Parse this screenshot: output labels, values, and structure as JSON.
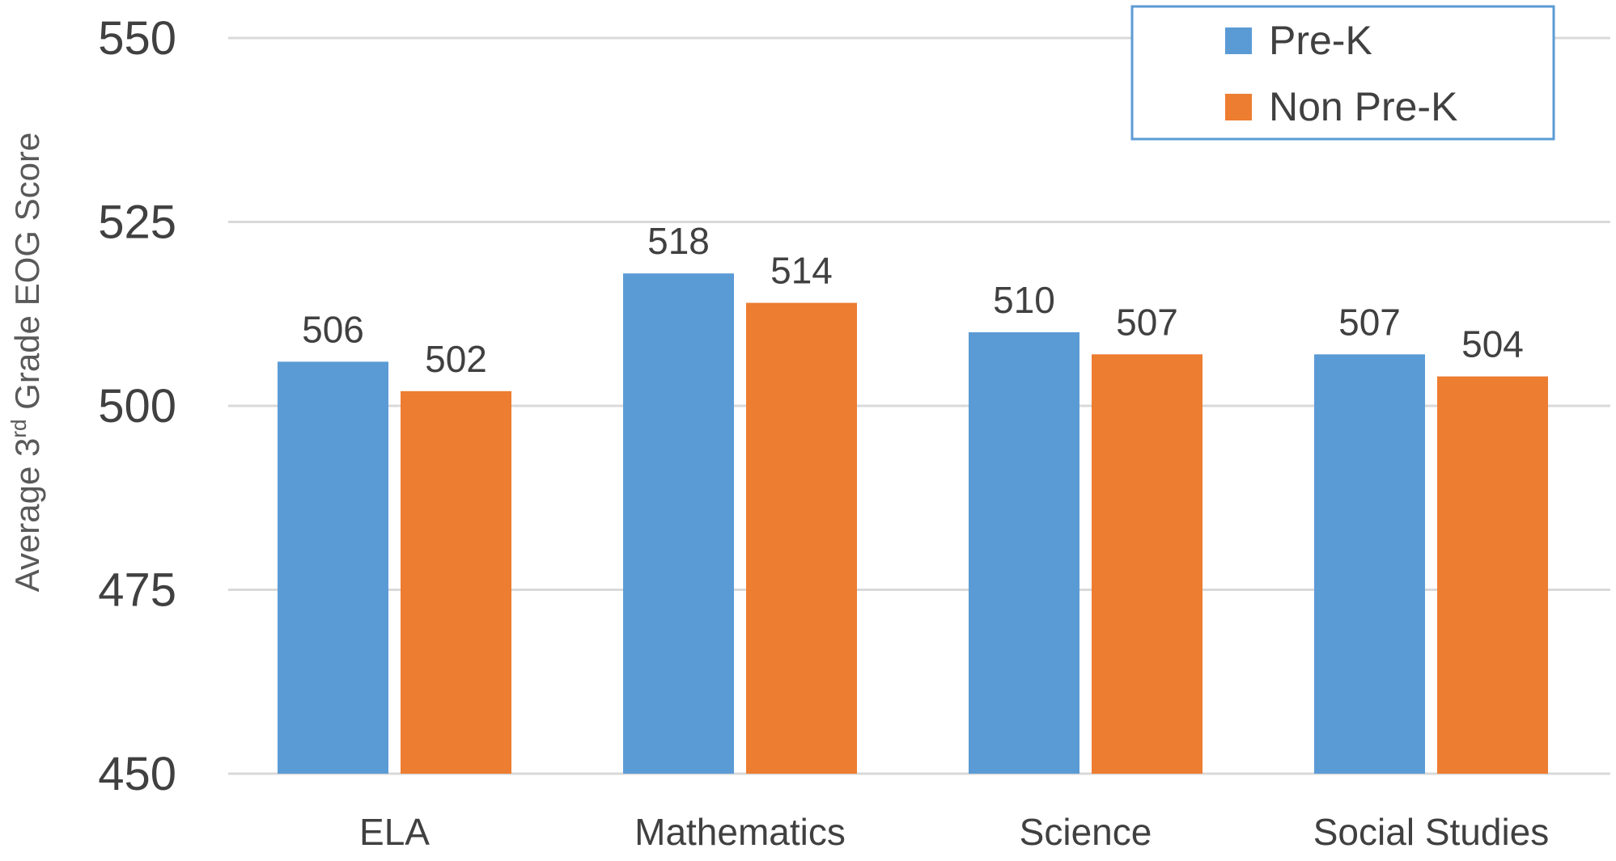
{
  "chart_data": {
    "type": "bar",
    "title": "",
    "xlabel": "",
    "ylabel": {
      "prefix": "Average 3",
      "superscript": "rd",
      "suffix": " Grade EOG Score"
    },
    "categories": [
      "ELA",
      "Mathematics",
      "Science",
      "Social Studies"
    ],
    "series": [
      {
        "name": "Pre-K",
        "color": "#5B9BD5",
        "values": [
          506,
          518,
          510,
          507
        ]
      },
      {
        "name": "Non Pre-K",
        "color": "#ED7D31",
        "values": [
          502,
          514,
          507,
          504
        ]
      }
    ],
    "value_labels": [
      [
        "506",
        "518",
        "510",
        "507"
      ],
      [
        "502",
        "514",
        "507",
        "504"
      ]
    ],
    "ylim": [
      450,
      550
    ],
    "yticks": [
      450,
      475,
      500,
      525,
      550
    ],
    "grid": true,
    "legend_position": "top-right",
    "colors": {
      "gridline": "#D9D9D9",
      "tick_text": "#404040",
      "label_text": "#404040",
      "legend_border": "#5B9BD5"
    }
  }
}
